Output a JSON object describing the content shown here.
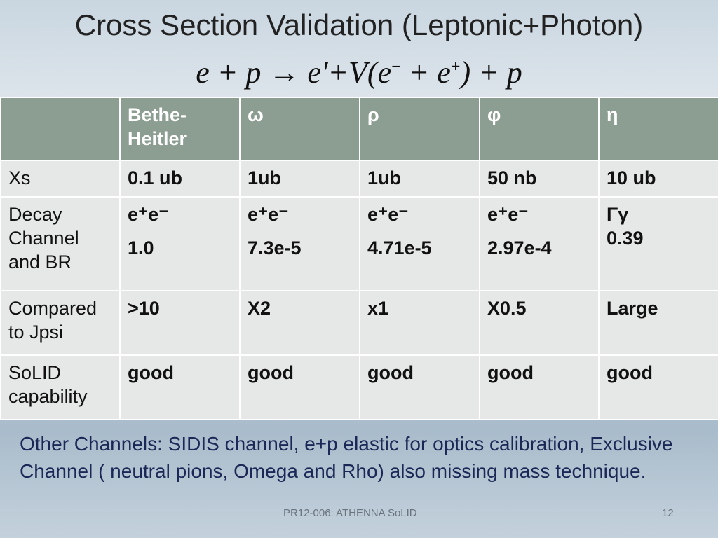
{
  "header": {
    "title": "Cross Section Validation (Leptonic+Photon)",
    "formula": [
      {
        "text": "e + p → e'+V(e"
      },
      {
        "sup": "−"
      },
      {
        "text": " + e"
      },
      {
        "sup": "+"
      },
      {
        "text": ") + p"
      }
    ]
  },
  "table": {
    "columns": [
      "",
      "Bethe-Heitler",
      "ω",
      "ρ",
      "φ",
      "η"
    ],
    "rows": [
      [
        [
          "Xs"
        ],
        [
          "0.1 ub"
        ],
        [
          "1ub"
        ],
        [
          "1ub"
        ],
        [
          "50 nb"
        ],
        [
          "10 ub"
        ]
      ],
      [
        [
          "Decay Channel and BR"
        ],
        [
          "e⁺e⁻",
          "1.0"
        ],
        [
          "e⁺e⁻",
          "7.3e-5"
        ],
        [
          "e⁺e⁻",
          "4.71e-5"
        ],
        [
          "e⁺e⁻",
          "2.97e-4"
        ],
        [
          "Γγ",
          "0.39"
        ]
      ],
      [
        [
          "Compared to Jpsi"
        ],
        [
          ">10"
        ],
        [
          "X2"
        ],
        [
          "x1"
        ],
        [
          "X0.5"
        ],
        [
          "Large"
        ]
      ],
      [
        [
          "SoLID capability"
        ],
        [
          "good"
        ],
        [
          "good"
        ],
        [
          "good"
        ],
        [
          "good"
        ],
        [
          "good"
        ]
      ]
    ]
  },
  "note": "Other Channels: SIDIS channel, e+p elastic for optics calibration, Exclusive Channel ( neutral pions, Omega and Rho) also missing mass technique.",
  "footer": "PR12-006: ATHENNA SoLID",
  "page": "12"
}
